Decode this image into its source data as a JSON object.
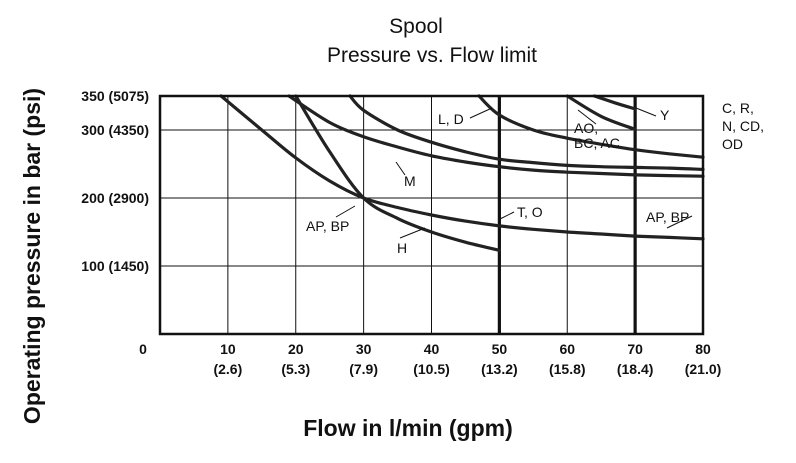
{
  "chart_data": {
    "type": "line",
    "title": "Spool",
    "subtitle": "Pressure vs. Flow limit",
    "xlabel": "Flow in l/min (gpm)",
    "ylabel": "Operating pressure in bar (psi)",
    "xlim": [
      0,
      80
    ],
    "ylim": [
      0,
      350
    ],
    "x_origin_label": "0",
    "x_ticks": [
      {
        "value": 10,
        "label": "10",
        "sub": "(2.6)"
      },
      {
        "value": 20,
        "label": "20",
        "sub": "(5.3)"
      },
      {
        "value": 30,
        "label": "30",
        "sub": "(7.9)"
      },
      {
        "value": 40,
        "label": "40",
        "sub": "(10.5)"
      },
      {
        "value": 50,
        "label": "50",
        "sub": "(13.2)"
      },
      {
        "value": 60,
        "label": "60",
        "sub": "(15.8)"
      },
      {
        "value": 70,
        "label": "70",
        "sub": "(18.4)"
      },
      {
        "value": 80,
        "label": "80",
        "sub": "(21.0)"
      }
    ],
    "y_ticks": [
      {
        "value": 100,
        "label": "100 (1450)"
      },
      {
        "value": 200,
        "label": "200 (2900)"
      },
      {
        "value": 300,
        "label": "300 (4350)"
      },
      {
        "value": 350,
        "label": "350 (5075)"
      }
    ],
    "grid": true,
    "series": [
      {
        "name": "AP, BP",
        "x": [
          9,
          15,
          20,
          25,
          30,
          35,
          40,
          45,
          50,
          55,
          60,
          65,
          70,
          75,
          80
        ],
        "y": [
          350,
          300,
          259,
          225,
          200,
          186,
          175,
          166,
          159,
          154,
          150,
          147,
          144,
          142,
          140
        ]
      },
      {
        "name": "H",
        "x": [
          20,
          25,
          30,
          35,
          40,
          45,
          50
        ],
        "y": [
          350,
          268,
          200,
          170,
          150,
          135,
          123
        ]
      },
      {
        "name": "M",
        "x": [
          19,
          25,
          30,
          35,
          40,
          45,
          50,
          55,
          60,
          65,
          70,
          75,
          80
        ],
        "y": [
          350,
          311,
          290,
          275,
          262,
          253,
          246,
          241,
          238,
          236,
          234,
          233,
          232
        ]
      },
      {
        "name": "C, R, N, CD, OD",
        "x": [
          28,
          30,
          35,
          40,
          45,
          50,
          55,
          60,
          65,
          70,
          75,
          80
        ],
        "y": [
          350,
          329,
          300,
          282,
          268,
          257,
          252,
          248,
          246,
          245,
          244,
          242
        ]
      },
      {
        "name": "L, D",
        "x": [
          47,
          50,
          55,
          60,
          65,
          70,
          75,
          80
        ],
        "y": [
          350,
          322,
          300,
          288,
          279,
          271,
          265,
          260
        ]
      },
      {
        "name": "AO, BC, AC",
        "x": [
          60,
          65,
          70
        ],
        "y": [
          350,
          320,
          301
        ]
      },
      {
        "name": "Y",
        "x": [
          64,
          67,
          70
        ],
        "y": [
          350,
          340,
          331
        ]
      }
    ],
    "limits": [
      {
        "name": "T, O",
        "x": 50
      },
      {
        "name": "AP, BP",
        "x": 70
      }
    ],
    "annotations": [
      {
        "text": "L, D"
      },
      {
        "text": "M"
      },
      {
        "text": "AP, BP"
      },
      {
        "text": "H"
      },
      {
        "text": "T, O"
      },
      {
        "text": "AO,"
      },
      {
        "text": "BC, AC"
      },
      {
        "text": "Y"
      },
      {
        "text": "C, R,"
      },
      {
        "text": "N, CD,"
      },
      {
        "text": "OD"
      },
      {
        "text": "AP, BP"
      }
    ]
  }
}
